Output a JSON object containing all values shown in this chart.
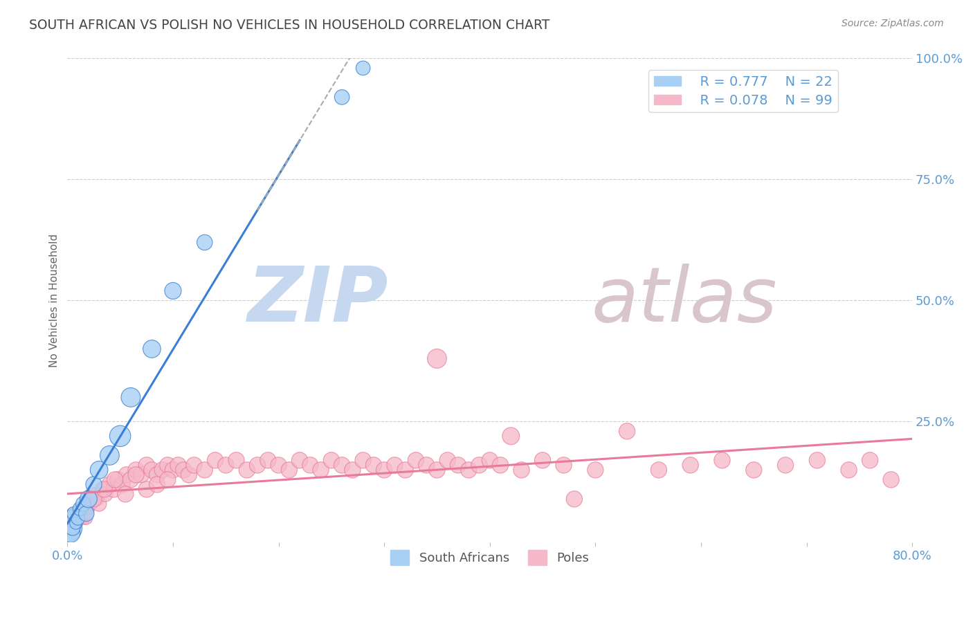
{
  "title": "SOUTH AFRICAN VS POLISH NO VEHICLES IN HOUSEHOLD CORRELATION CHART",
  "source_text": "Source: ZipAtlas.com",
  "ylabel": "No Vehicles in Household",
  "xlim": [
    0.0,
    0.8
  ],
  "ylim": [
    0.0,
    1.0
  ],
  "legend_r1": "R = 0.777",
  "legend_n1": "N = 22",
  "legend_r2": "R = 0.078",
  "legend_n2": "N = 99",
  "color_sa": "#a8d0f5",
  "color_poles": "#f5b8c8",
  "color_sa_line": "#3a7fd5",
  "color_poles_line": "#e87a9a",
  "background_color": "#ffffff",
  "grid_color": "#cccccc",
  "watermark_zip": "ZIP",
  "watermark_atlas": "atlas",
  "watermark_color_zip": "#c5d8f0",
  "watermark_color_atlas": "#d8c5cd",
  "title_color": "#444444",
  "axis_label_color": "#666666",
  "tick_color": "#5b9bd5",
  "source_color": "#888888",
  "sa_scatter_x": [
    0.001,
    0.002,
    0.003,
    0.004,
    0.005,
    0.006,
    0.008,
    0.01,
    0.012,
    0.015,
    0.018,
    0.02,
    0.025,
    0.03,
    0.04,
    0.05,
    0.06,
    0.08,
    0.1,
    0.13,
    0.26,
    0.28
  ],
  "sa_scatter_y": [
    0.03,
    0.04,
    0.02,
    0.05,
    0.03,
    0.06,
    0.04,
    0.05,
    0.07,
    0.08,
    0.06,
    0.09,
    0.12,
    0.15,
    0.18,
    0.22,
    0.3,
    0.4,
    0.52,
    0.62,
    0.92,
    0.98
  ],
  "sa_scatter_size": [
    200,
    150,
    100,
    80,
    60,
    50,
    40,
    50,
    55,
    60,
    65,
    80,
    70,
    85,
    100,
    120,
    100,
    85,
    75,
    65,
    60,
    55
  ],
  "poles_scatter_x": [
    0.001,
    0.002,
    0.003,
    0.004,
    0.005,
    0.006,
    0.007,
    0.008,
    0.009,
    0.01,
    0.011,
    0.012,
    0.013,
    0.014,
    0.015,
    0.016,
    0.017,
    0.018,
    0.019,
    0.02,
    0.022,
    0.024,
    0.026,
    0.028,
    0.03,
    0.033,
    0.036,
    0.04,
    0.044,
    0.048,
    0.052,
    0.056,
    0.06,
    0.065,
    0.07,
    0.075,
    0.08,
    0.085,
    0.09,
    0.095,
    0.1,
    0.105,
    0.11,
    0.115,
    0.12,
    0.13,
    0.14,
    0.15,
    0.16,
    0.17,
    0.18,
    0.19,
    0.2,
    0.21,
    0.22,
    0.23,
    0.24,
    0.25,
    0.26,
    0.27,
    0.28,
    0.29,
    0.3,
    0.31,
    0.32,
    0.33,
    0.34,
    0.35,
    0.36,
    0.37,
    0.38,
    0.39,
    0.4,
    0.41,
    0.43,
    0.45,
    0.47,
    0.5,
    0.53,
    0.56,
    0.59,
    0.62,
    0.65,
    0.68,
    0.71,
    0.74,
    0.76,
    0.78,
    0.025,
    0.035,
    0.045,
    0.055,
    0.065,
    0.075,
    0.085,
    0.095,
    0.35,
    0.42,
    0.48
  ],
  "poles_scatter_y": [
    0.03,
    0.04,
    0.05,
    0.04,
    0.06,
    0.03,
    0.05,
    0.06,
    0.04,
    0.05,
    0.06,
    0.07,
    0.05,
    0.06,
    0.07,
    0.05,
    0.06,
    0.05,
    0.06,
    0.07,
    0.08,
    0.09,
    0.1,
    0.09,
    0.08,
    0.11,
    0.1,
    0.12,
    0.11,
    0.13,
    0.12,
    0.14,
    0.13,
    0.15,
    0.14,
    0.16,
    0.15,
    0.14,
    0.15,
    0.16,
    0.15,
    0.16,
    0.15,
    0.14,
    0.16,
    0.15,
    0.17,
    0.16,
    0.17,
    0.15,
    0.16,
    0.17,
    0.16,
    0.15,
    0.17,
    0.16,
    0.15,
    0.17,
    0.16,
    0.15,
    0.17,
    0.16,
    0.15,
    0.16,
    0.15,
    0.17,
    0.16,
    0.15,
    0.17,
    0.16,
    0.15,
    0.16,
    0.17,
    0.16,
    0.15,
    0.17,
    0.16,
    0.15,
    0.23,
    0.15,
    0.16,
    0.17,
    0.15,
    0.16,
    0.17,
    0.15,
    0.17,
    0.13,
    0.09,
    0.11,
    0.13,
    0.1,
    0.14,
    0.11,
    0.12,
    0.13,
    0.38,
    0.22,
    0.09
  ],
  "poles_scatter_size": [
    40,
    40,
    40,
    40,
    40,
    40,
    40,
    40,
    40,
    40,
    40,
    40,
    40,
    40,
    40,
    40,
    40,
    40,
    40,
    40,
    50,
    50,
    50,
    50,
    60,
    60,
    60,
    70,
    70,
    70,
    70,
    70,
    70,
    70,
    70,
    70,
    70,
    70,
    70,
    70,
    70,
    70,
    70,
    70,
    70,
    70,
    70,
    70,
    70,
    70,
    70,
    70,
    70,
    70,
    70,
    70,
    70,
    70,
    70,
    70,
    70,
    70,
    70,
    70,
    70,
    70,
    70,
    70,
    70,
    70,
    70,
    70,
    70,
    70,
    70,
    70,
    70,
    70,
    70,
    70,
    70,
    70,
    70,
    70,
    70,
    70,
    70,
    70,
    70,
    70,
    70,
    70,
    70,
    70,
    70,
    70,
    100,
    80,
    70
  ]
}
